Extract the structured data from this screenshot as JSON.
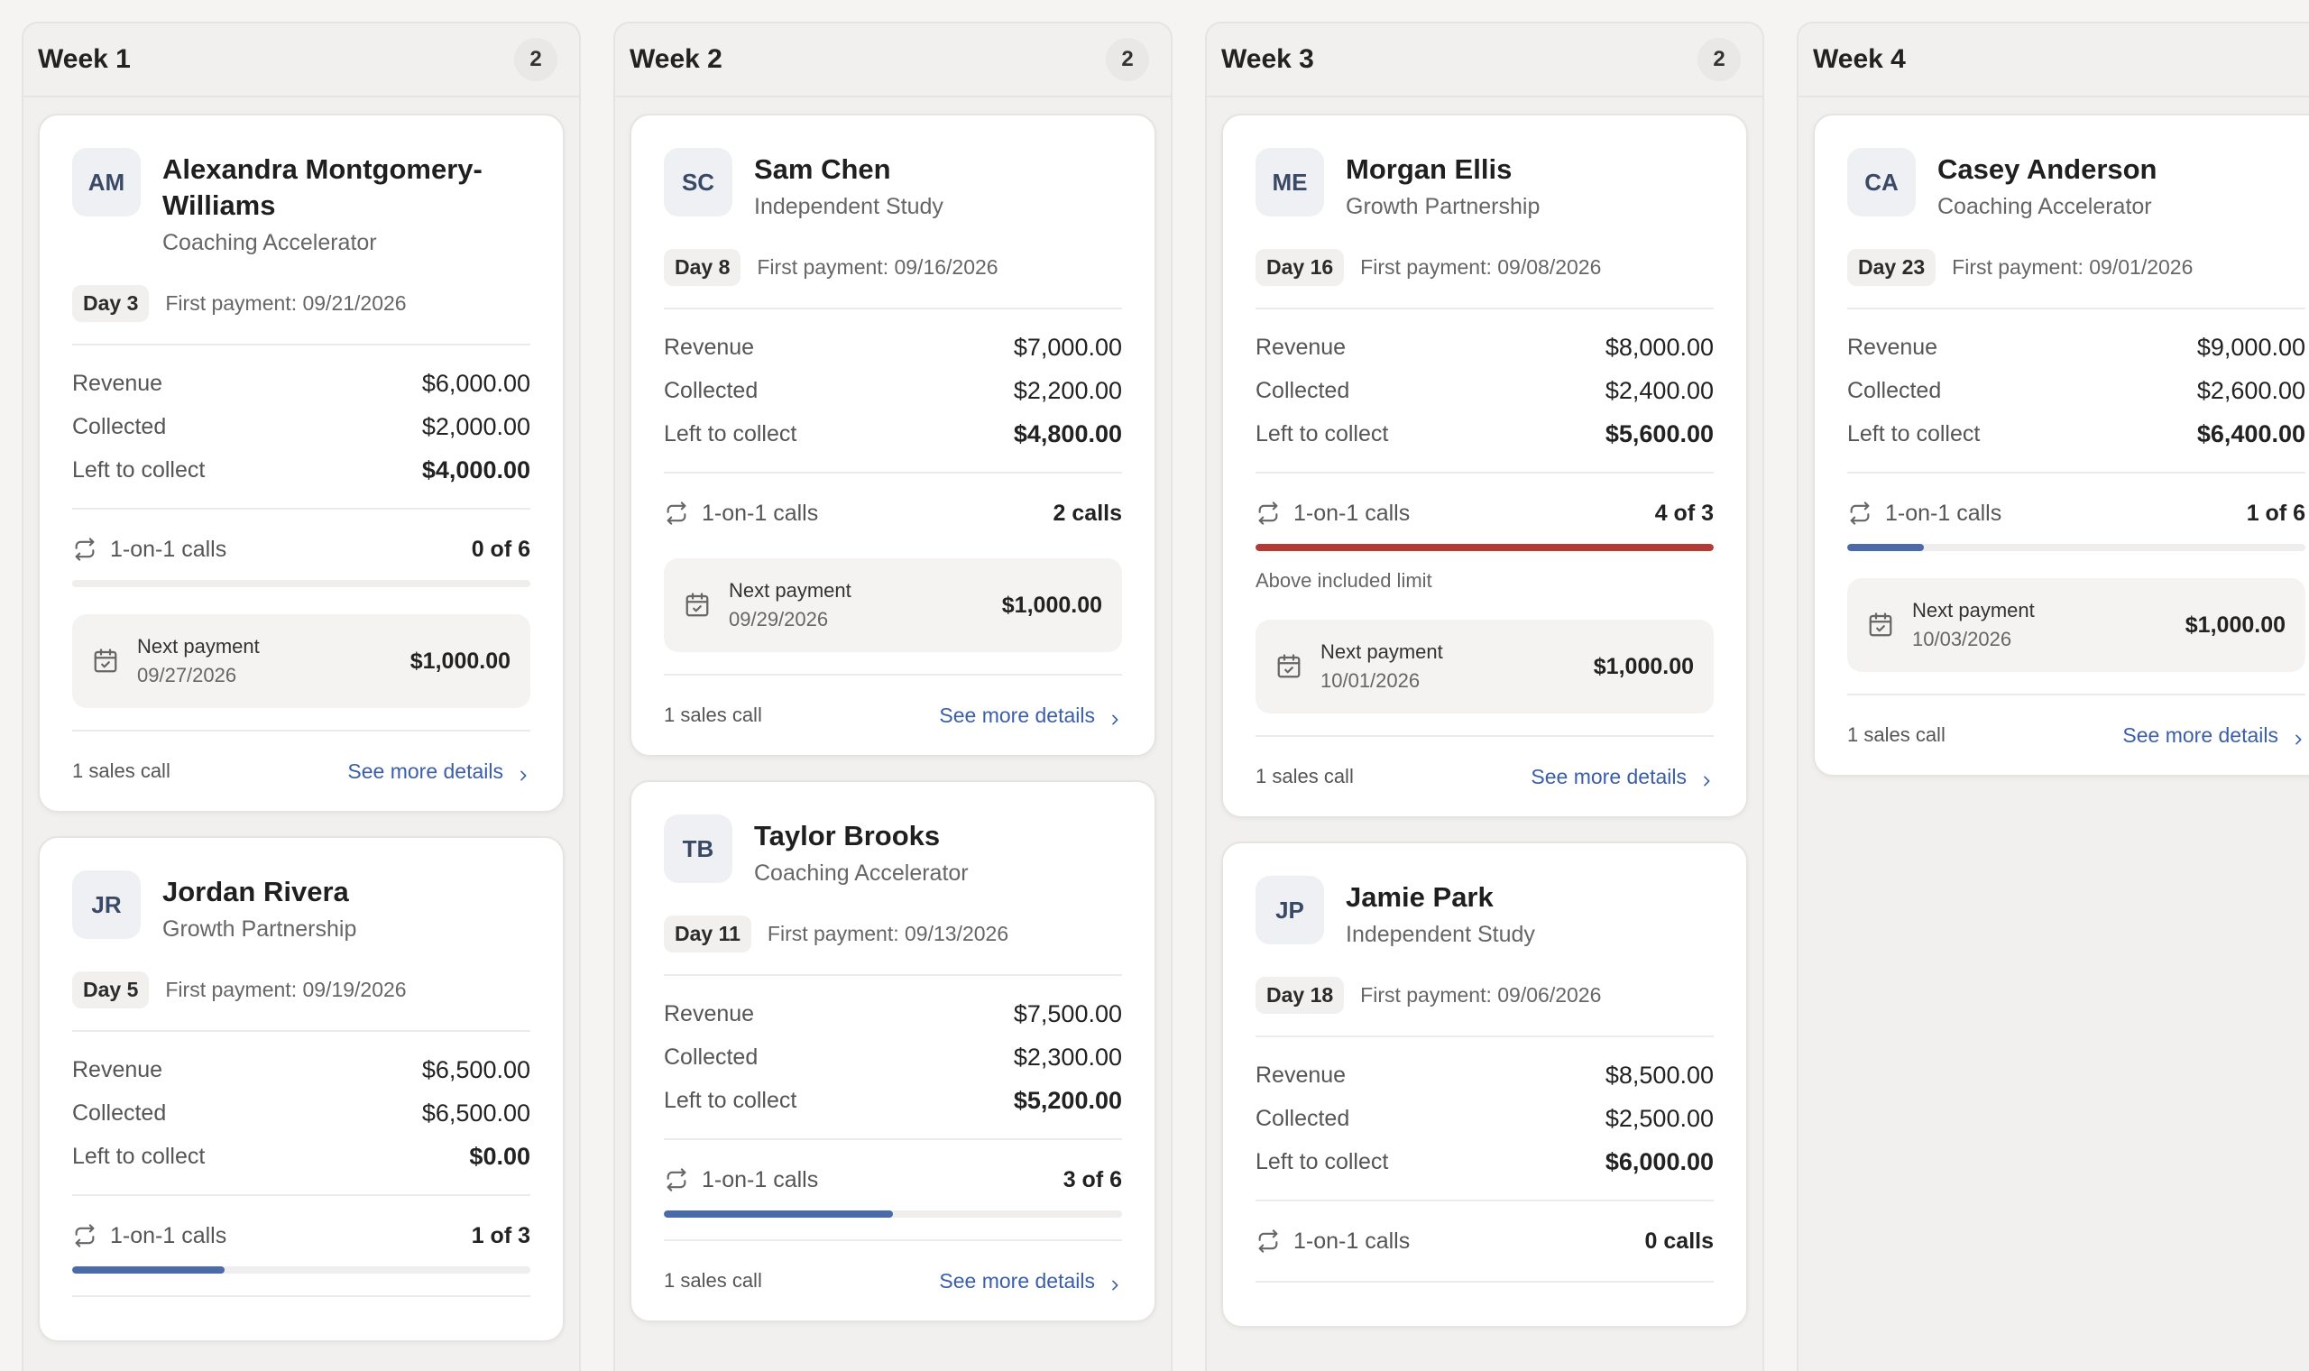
{
  "icons": {
    "calls": "repeat-icon",
    "payment": "calendar-check-icon",
    "details": "chevron-right-icon"
  },
  "colors": {
    "progress_normal": "#4a6aa8",
    "progress_over": "#b33a35",
    "link": "#3a5ea8"
  },
  "columns": [
    {
      "title": "Week 1",
      "count": "2",
      "cards": [
        {
          "initials": "AM",
          "name": "Alexandra Montgomery-Williams",
          "program": "Coaching Accelerator",
          "day": "Day 3",
          "first_payment": "First payment: 09/21/2026",
          "revenue_label": "Revenue",
          "revenue": "$6,000.00",
          "collected_label": "Collected",
          "collected": "$2,000.00",
          "left_label": "Left to collect",
          "left": "$4,000.00",
          "calls_label": "1-on-1 calls",
          "calls_value": "0 of 6",
          "progress": 0.0,
          "over_limit": false,
          "next_payment_label": "Next payment",
          "next_payment_date": "09/27/2026",
          "next_payment_amount": "$1,000.00",
          "sales_calls": "1 sales call",
          "details_label": "See more details"
        },
        {
          "initials": "JR",
          "name": "Jordan Rivera",
          "program": "Growth Partnership",
          "day": "Day 5",
          "first_payment": "First payment: 09/19/2026",
          "revenue_label": "Revenue",
          "revenue": "$6,500.00",
          "collected_label": "Collected",
          "collected": "$6,500.00",
          "left_label": "Left to collect",
          "left": "$0.00",
          "calls_label": "1-on-1 calls",
          "calls_value": "1 of 3",
          "progress": 0.333,
          "over_limit": false
        }
      ]
    },
    {
      "title": "Week 2",
      "count": "2",
      "cards": [
        {
          "initials": "SC",
          "name": "Sam Chen",
          "program": "Independent Study",
          "day": "Day 8",
          "first_payment": "First payment: 09/16/2026",
          "revenue_label": "Revenue",
          "revenue": "$7,000.00",
          "collected_label": "Collected",
          "collected": "$2,200.00",
          "left_label": "Left to collect",
          "left": "$4,800.00",
          "calls_label": "1-on-1 calls",
          "calls_value": "2 calls",
          "next_payment_label": "Next payment",
          "next_payment_date": "09/29/2026",
          "next_payment_amount": "$1,000.00",
          "sales_calls": "1 sales call",
          "details_label": "See more details"
        },
        {
          "initials": "TB",
          "name": "Taylor Brooks",
          "program": "Coaching Accelerator",
          "day": "Day 11",
          "first_payment": "First payment: 09/13/2026",
          "revenue_label": "Revenue",
          "revenue": "$7,500.00",
          "collected_label": "Collected",
          "collected": "$2,300.00",
          "left_label": "Left to collect",
          "left": "$5,200.00",
          "calls_label": "1-on-1 calls",
          "calls_value": "3 of 6",
          "progress": 0.5,
          "over_limit": false,
          "sales_calls": "1 sales call",
          "details_label": "See more details"
        }
      ]
    },
    {
      "title": "Week 3",
      "count": "2",
      "cards": [
        {
          "initials": "ME",
          "name": "Morgan Ellis",
          "program": "Growth Partnership",
          "day": "Day 16",
          "first_payment": "First payment: 09/08/2026",
          "revenue_label": "Revenue",
          "revenue": "$8,000.00",
          "collected_label": "Collected",
          "collected": "$2,400.00",
          "left_label": "Left to collect",
          "left": "$5,600.00",
          "calls_label": "1-on-1 calls",
          "calls_value": "4 of 3",
          "progress": 1.0,
          "over_limit": true,
          "limit_note": "Above included limit",
          "next_payment_label": "Next payment",
          "next_payment_date": "10/01/2026",
          "next_payment_amount": "$1,000.00",
          "sales_calls": "1 sales call",
          "details_label": "See more details"
        },
        {
          "initials": "JP",
          "name": "Jamie Park",
          "program": "Independent Study",
          "day": "Day 18",
          "first_payment": "First payment: 09/06/2026",
          "revenue_label": "Revenue",
          "revenue": "$8,500.00",
          "collected_label": "Collected",
          "collected": "$2,500.00",
          "left_label": "Left to collect",
          "left": "$6,000.00",
          "calls_label": "1-on-1 calls",
          "calls_value": "0 calls"
        }
      ]
    },
    {
      "title": "Week 4",
      "cards": [
        {
          "initials": "CA",
          "name": "Casey Anderson",
          "program": "Coaching Accelerator",
          "day": "Day 23",
          "first_payment": "First payment: 09/01/2026",
          "revenue_label": "Revenue",
          "revenue": "$9,000.00",
          "collected_label": "Collected",
          "collected": "$2,600.00",
          "left_label": "Left to collect",
          "left": "$6,400.00",
          "calls_label": "1-on-1 calls",
          "calls_value": "1 of 6",
          "progress": 0.167,
          "over_limit": false,
          "next_payment_label": "Next payment",
          "next_payment_date": "10/03/2026",
          "next_payment_amount": "$1,000.00",
          "sales_calls": "1 sales call",
          "details_label": "See more details"
        }
      ]
    }
  ]
}
